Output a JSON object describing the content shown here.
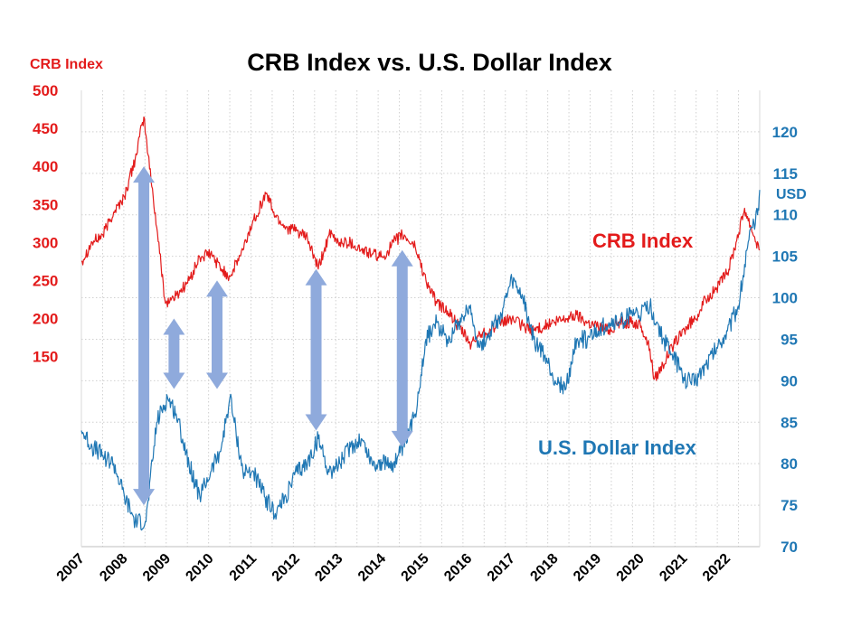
{
  "chart_data": {
    "type": "line",
    "title": "CRB Index vs. U.S. Dollar Index",
    "grid": true,
    "x_ticks": [
      "2007",
      "2008",
      "2009",
      "2010",
      "2011",
      "2012",
      "2013",
      "2014",
      "2015",
      "2016",
      "2017",
      "2018",
      "2019",
      "2020",
      "2021",
      "2022"
    ],
    "xlim": [
      2007.0,
      2022.75
    ],
    "left_axis": {
      "label": "CRB Index",
      "color": "#e31b1b",
      "ticks": [
        "500",
        "450",
        "400",
        "350",
        "300",
        "250",
        "200",
        "150"
      ],
      "ylim": [
        -100,
        500
      ]
    },
    "right_axis": {
      "label": "USD",
      "color": "#1f77b4",
      "ticks": [
        "120",
        "115",
        "110",
        "105",
        "100",
        "95",
        "90",
        "85",
        "80",
        "75",
        "70"
      ],
      "ylim": [
        70,
        125
      ]
    },
    "series": [
      {
        "name": "CRB Index",
        "axis": "left",
        "color": "#e31b1b",
        "x": [
          2007.0,
          2007.25,
          2007.5,
          2007.75,
          2008.0,
          2008.25,
          2008.45,
          2008.55,
          2008.75,
          2008.95,
          2009.2,
          2009.5,
          2009.75,
          2010.0,
          2010.25,
          2010.45,
          2010.75,
          2011.0,
          2011.3,
          2011.5,
          2011.75,
          2012.0,
          2012.25,
          2012.5,
          2012.75,
          2013.0,
          2013.25,
          2013.5,
          2013.75,
          2014.0,
          2014.25,
          2014.45,
          2014.75,
          2015.0,
          2015.25,
          2015.5,
          2015.75,
          2016.05,
          2016.25,
          2016.5,
          2016.75,
          2017.0,
          2017.25,
          2017.5,
          2017.75,
          2018.0,
          2018.25,
          2018.5,
          2018.75,
          2019.0,
          2019.25,
          2019.5,
          2019.75,
          2020.0,
          2020.2,
          2020.3,
          2020.5,
          2020.75,
          2021.0,
          2021.25,
          2021.5,
          2021.75,
          2022.0,
          2022.2,
          2022.4,
          2022.55,
          2022.75
        ],
        "y": [
          275,
          300,
          310,
          340,
          360,
          410,
          465,
          415,
          320,
          220,
          230,
          250,
          280,
          285,
          265,
          255,
          290,
          330,
          365,
          335,
          320,
          315,
          305,
          265,
          310,
          300,
          300,
          290,
          285,
          280,
          300,
          310,
          295,
          250,
          220,
          210,
          190,
          165,
          180,
          185,
          195,
          200,
          190,
          185,
          190,
          195,
          200,
          205,
          195,
          190,
          185,
          195,
          195,
          190,
          160,
          120,
          140,
          165,
          185,
          200,
          225,
          240,
          260,
          300,
          345,
          320,
          290
        ]
      },
      {
        "name": "U.S. Dollar Index",
        "axis": "right",
        "color": "#1f77b4",
        "x": [
          2007.0,
          2007.25,
          2007.5,
          2007.75,
          2008.0,
          2008.25,
          2008.5,
          2008.75,
          2009.0,
          2009.2,
          2009.5,
          2009.75,
          2010.0,
          2010.25,
          2010.45,
          2010.75,
          2011.0,
          2011.25,
          2011.5,
          2011.75,
          2012.0,
          2012.25,
          2012.5,
          2012.75,
          2013.0,
          2013.25,
          2013.5,
          2013.75,
          2014.0,
          2014.25,
          2014.5,
          2014.75,
          2015.0,
          2015.25,
          2015.5,
          2015.75,
          2016.0,
          2016.25,
          2016.5,
          2016.75,
          2017.0,
          2017.25,
          2017.5,
          2017.75,
          2018.0,
          2018.25,
          2018.5,
          2018.75,
          2019.0,
          2019.25,
          2019.5,
          2019.75,
          2020.0,
          2020.2,
          2020.35,
          2020.5,
          2020.75,
          2021.0,
          2021.25,
          2021.5,
          2021.75,
          2022.0,
          2022.25,
          2022.5,
          2022.7,
          2022.75
        ],
        "y": [
          84,
          82,
          81,
          80,
          76,
          73,
          73,
          85,
          88,
          86,
          80,
          76,
          79,
          82,
          88,
          79,
          79,
          76,
          74,
          76,
          79,
          80,
          83,
          79,
          80,
          82,
          83,
          80,
          80,
          80,
          82,
          86,
          95,
          97,
          95,
          97,
          99,
          94,
          96,
          98,
          102,
          100,
          95,
          93,
          90,
          89,
          95,
          95,
          96,
          97,
          97,
          98,
          98,
          99,
          97,
          95,
          93,
          90,
          90,
          92,
          94,
          96,
          99,
          107,
          110,
          113
        ]
      }
    ],
    "arrows": [
      {
        "x": 2008.45,
        "y_top": 400,
        "y_bottom": 75
      },
      {
        "x": 2009.15,
        "y_top": 200,
        "y_bottom": 89
      },
      {
        "x": 2010.15,
        "y_top": 250,
        "y_bottom": 89
      },
      {
        "x": 2012.45,
        "y_top": 265,
        "y_bottom": 84
      },
      {
        "x": 2014.45,
        "y_top": 290,
        "y_bottom": 82
      }
    ],
    "labels": {
      "crb": "CRB Index",
      "usd": "U.S. Dollar Index"
    }
  }
}
